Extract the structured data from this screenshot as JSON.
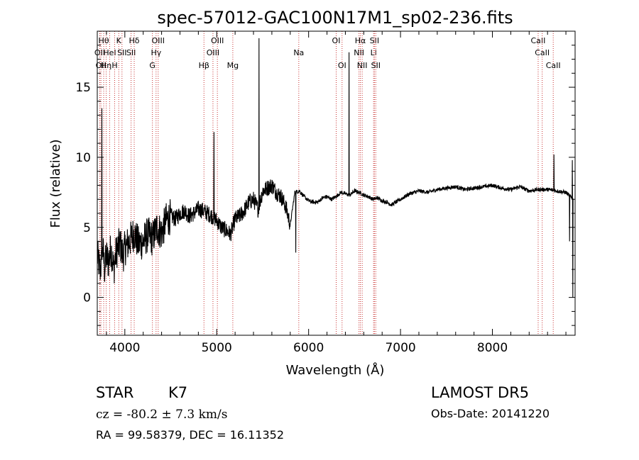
{
  "chart_data": {
    "type": "line",
    "title": "spec-57012-GAC100N17M1_sp02-236.fits",
    "xlabel": "Wavelength (Å)",
    "ylabel": "Flux (relative)",
    "xlim": [
      3700,
      8900
    ],
    "ylim": [
      -2.7,
      19.0
    ],
    "x_ticks": [
      4000,
      5000,
      6000,
      7000,
      8000
    ],
    "y_ticks": [
      0,
      5,
      10,
      15
    ],
    "grid": false,
    "series": [
      {
        "x": [
          3700,
          3730,
          3750,
          3760,
          3780,
          3800,
          3820,
          3850,
          3880,
          3900,
          3920,
          3950,
          3980,
          4000,
          4050,
          4100,
          4150,
          4200,
          4250,
          4300,
          4350,
          4400,
          4450,
          4500,
          4550,
          4600,
          4650,
          4700,
          4750,
          4800,
          4850,
          4900,
          4950,
          5000,
          5050,
          5100,
          5150,
          5200,
          5250,
          5300,
          5350,
          5400,
          5450,
          5500,
          5550,
          5600,
          5650,
          5700,
          5750,
          5800,
          5850,
          5900,
          5950,
          6000,
          6050,
          6100,
          6150,
          6200,
          6250,
          6300,
          6350,
          6400,
          6450,
          6500,
          6550,
          6600,
          6650,
          6700,
          6750,
          6800,
          6850,
          6900,
          6950,
          7000,
          7100,
          7200,
          7300,
          7400,
          7500,
          7600,
          7700,
          7800,
          7900,
          8000,
          8100,
          8200,
          8300,
          8400,
          8500,
          8600,
          8700,
          8800,
          8850,
          8900
        ],
        "y": [
          3.0,
          2.0,
          2.5,
          3.5,
          2.0,
          3.0,
          2.5,
          3.5,
          2.0,
          3.0,
          3.5,
          3.8,
          3.0,
          3.5,
          4.0,
          4.6,
          3.8,
          4.0,
          4.5,
          4.2,
          5.0,
          4.6,
          5.5,
          5.8,
          5.6,
          6.0,
          6.2,
          5.8,
          6.0,
          6.3,
          6.2,
          6.0,
          5.8,
          5.5,
          5.0,
          4.8,
          4.5,
          5.6,
          5.8,
          6.2,
          6.8,
          7.0,
          6.3,
          7.6,
          7.8,
          8.0,
          7.5,
          7.2,
          6.5,
          5.2,
          7.5,
          7.6,
          7.2,
          6.9,
          6.8,
          6.8,
          7.1,
          7.2,
          7.0,
          7.2,
          7.5,
          7.4,
          7.3,
          7.6,
          7.5,
          7.3,
          7.2,
          7.0,
          7.1,
          6.9,
          6.8,
          6.6,
          6.8,
          7.0,
          7.4,
          7.6,
          7.5,
          7.7,
          7.8,
          7.9,
          7.7,
          7.8,
          7.9,
          8.0,
          7.8,
          7.7,
          7.9,
          7.6,
          7.7,
          7.7,
          7.6,
          7.5,
          7.2,
          7.0
        ]
      }
    ],
    "line_markers": [
      {
        "x": 3727,
        "row": 1,
        "label": "OII"
      },
      {
        "x": 3740,
        "row": 2,
        "label": "OII"
      },
      {
        "x": 3770,
        "row": 0,
        "label": "Hθ"
      },
      {
        "x": 3797,
        "row": 2,
        "label": "Hη"
      },
      {
        "x": 3835,
        "row": 1,
        "label": "HeI"
      },
      {
        "x": 3889,
        "row": 2,
        "label": "H"
      },
      {
        "x": 3934,
        "row": 0,
        "label": "K"
      },
      {
        "x": 3969,
        "row": 1,
        "label": "SII"
      },
      {
        "x": 4068,
        "row": 1,
        "label": "SII"
      },
      {
        "x": 4102,
        "row": 0,
        "label": "Hδ"
      },
      {
        "x": 4300,
        "row": 2,
        "label": "G"
      },
      {
        "x": 4340,
        "row": 1,
        "label": "Hγ"
      },
      {
        "x": 4363,
        "row": 0,
        "label": "OIII"
      },
      {
        "x": 4861,
        "row": 2,
        "label": "Hβ"
      },
      {
        "x": 4959,
        "row": 1,
        "label": "OIII"
      },
      {
        "x": 5007,
        "row": 0,
        "label": "OIII"
      },
      {
        "x": 5175,
        "row": 2,
        "label": "Mg"
      },
      {
        "x": 5893,
        "row": 1,
        "label": "Na"
      },
      {
        "x": 6300,
        "row": 0,
        "label": "OI"
      },
      {
        "x": 6364,
        "row": 2,
        "label": "OI"
      },
      {
        "x": 6548,
        "row": 1,
        "label": "NII"
      },
      {
        "x": 6563,
        "row": 0,
        "label": "Hα"
      },
      {
        "x": 6583,
        "row": 2,
        "label": "NII"
      },
      {
        "x": 6707,
        "row": 1,
        "label": "Li"
      },
      {
        "x": 6716,
        "row": 0,
        "label": "SII"
      },
      {
        "x": 6731,
        "row": 2,
        "label": "SII"
      },
      {
        "x": 8498,
        "row": 0,
        "label": "CaII"
      },
      {
        "x": 8542,
        "row": 1,
        "label": "CaII"
      },
      {
        "x": 8662,
        "row": 2,
        "label": "CaII"
      }
    ],
    "spikes": [
      {
        "x": 3750,
        "y": 13.5
      },
      {
        "x": 4970,
        "y": 11.8
      },
      {
        "x": 5460,
        "y": 18.5
      },
      {
        "x": 6440,
        "y": 17.5
      },
      {
        "x": 8670,
        "y": 10.2
      },
      {
        "x": 8870,
        "y": 9.8
      }
    ]
  },
  "info": {
    "object_class": "STAR",
    "subclass": "K7",
    "survey": "LAMOST DR5",
    "velocity": "cz = -80.2 ± 7.3 km/s",
    "obs_date": "Obs-Date: 20141220",
    "coords": "RA =  99.58379, DEC =  16.11352"
  },
  "colors": {
    "line": "#000000",
    "marker": "#c83232",
    "background": "#ffffff"
  }
}
